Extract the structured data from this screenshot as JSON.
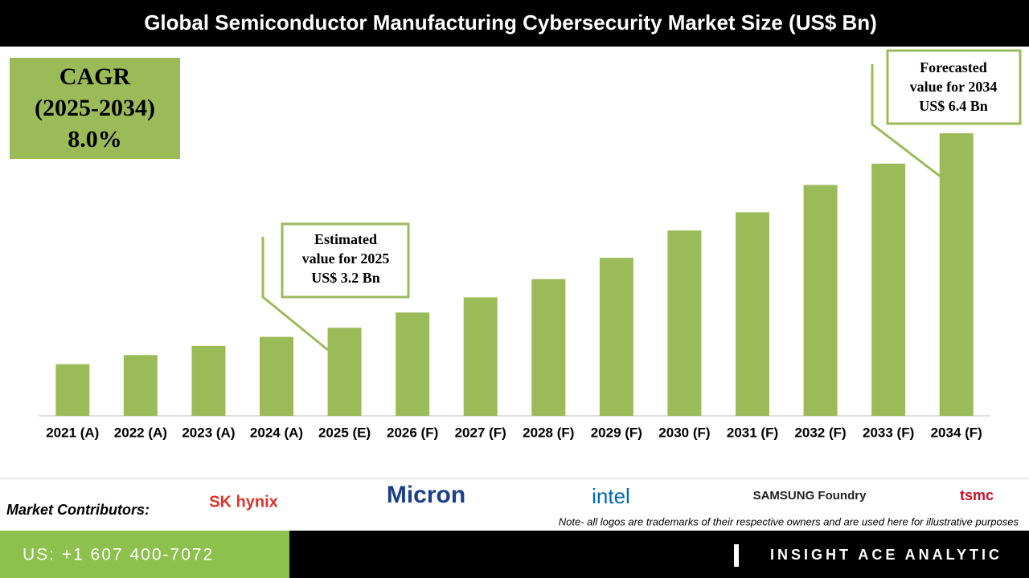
{
  "chart_data": {
    "type": "bar",
    "title": "Global Semiconductor Manufacturing Cybersecurity Market Size (US$ Bn)",
    "categories": [
      "2021 (A)",
      "2022 (A)",
      "2023 (A)",
      "2024 (A)",
      "2025 (E)",
      "2026 (F)",
      "2027 (F)",
      "2028 (F)",
      "2029 (F)",
      "2030 (F)",
      "2031 (F)",
      "2032 (F)",
      "2033 (F)",
      "2034 (F)"
    ],
    "values": [
      2.6,
      2.75,
      2.9,
      3.05,
      3.2,
      3.45,
      3.7,
      4.0,
      4.35,
      4.8,
      5.1,
      5.55,
      5.9,
      6.4
    ],
    "color": "#9bbb59",
    "ylim": [
      1.75,
      7.8
    ],
    "cagr_box": [
      "CAGR",
      "(2025-2034)",
      "8.0%"
    ],
    "annotations": [
      {
        "lines": [
          "Estimated",
          "value for 2025",
          "US$ 3.2 Bn"
        ]
      },
      {
        "lines": [
          "Forecasted",
          "value for 2034",
          "US$ 6.4 Bn"
        ]
      }
    ]
  },
  "footer": {
    "contributors_label": "Market Contributors:",
    "logos": [
      "SK hynix",
      "Micron",
      "intel",
      "SAMSUNG Foundry",
      "tsmc"
    ],
    "note": "Note- all logos are trademarks of their respective owners and are used here for illustrative purposes",
    "contact": "US: +1 607 400-7072",
    "brand": "INSIGHT ACE ANALYTIC"
  }
}
